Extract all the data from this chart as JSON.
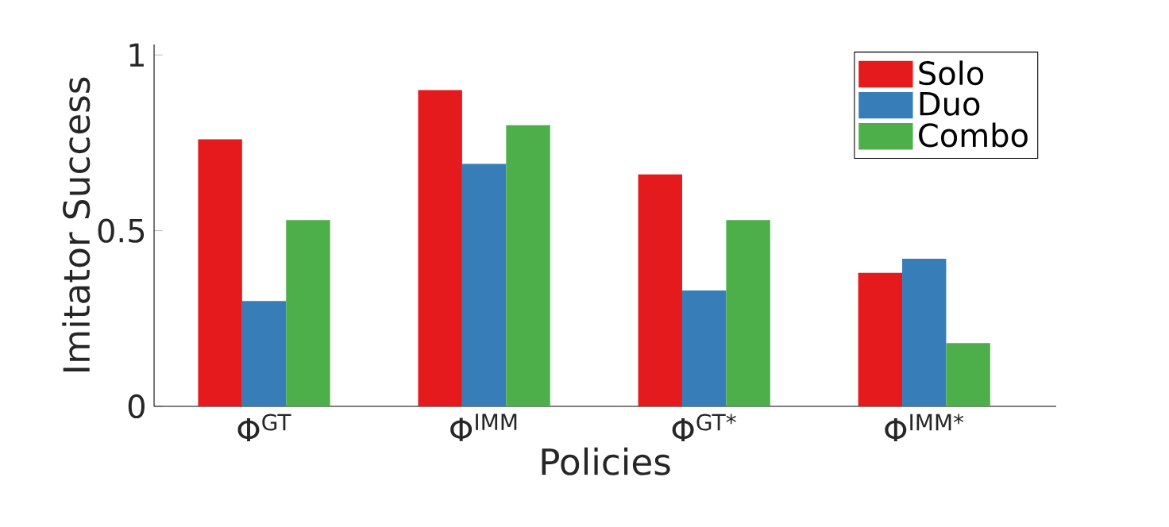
{
  "chart_data": {
    "type": "bar",
    "xlabel": "Policies",
    "ylabel": "Imitator Success",
    "categories": [
      "Φ$^{GT}$",
      "Φ$^{IMM}$",
      "Φ$^{GT*}$",
      "Φ$^{IMM*}$"
    ],
    "series": [
      {
        "name": "Solo",
        "color": "#e41a1c",
        "values": [
          0.76,
          0.9,
          0.66,
          0.38
        ]
      },
      {
        "name": "Duo",
        "color": "#377eb8",
        "values": [
          0.3,
          0.69,
          0.33,
          0.42
        ]
      },
      {
        "name": "Combo",
        "color": "#4daf4a",
        "values": [
          0.53,
          0.8,
          0.53,
          0.18
        ]
      }
    ],
    "ylim": [
      0,
      1.03
    ],
    "yticks": [
      0,
      0.5,
      1
    ],
    "grid": false,
    "legend": "top right"
  }
}
